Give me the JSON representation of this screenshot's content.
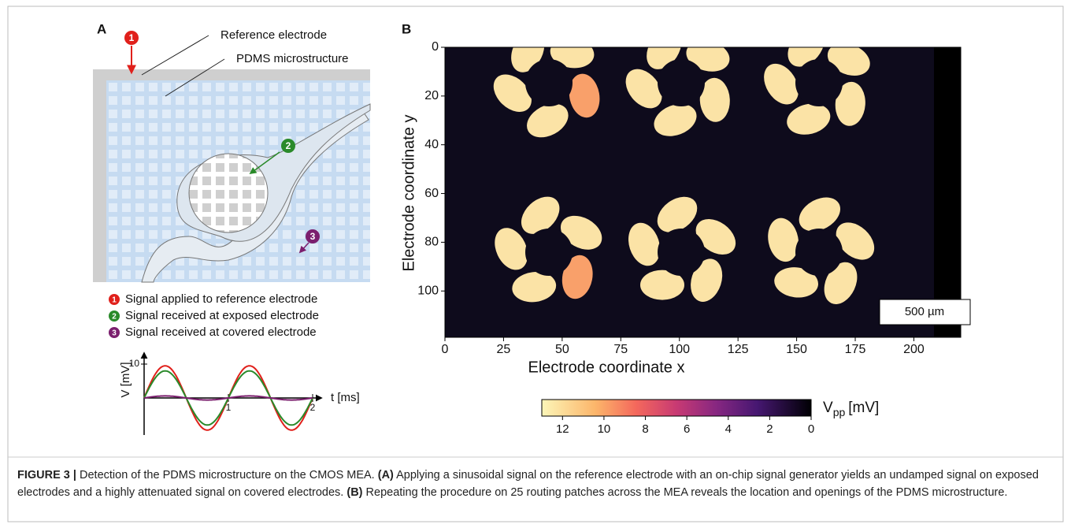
{
  "panel_a": {
    "letter": "A",
    "reference_label": "Reference electrode",
    "pdms_label": "PDMS microstructure",
    "markers": [
      "1",
      "2",
      "3"
    ],
    "legend": [
      {
        "num": "1",
        "text": "Signal applied to reference electrode"
      },
      {
        "num": "2",
        "text": "Signal received at exposed electrode"
      },
      {
        "num": "3",
        "text": "Signal received at covered electrode"
      }
    ],
    "mini_plot": {
      "ylabel": "V [mV]",
      "xlabel": "t [ms]",
      "yticks": [
        10
      ],
      "xticks": [
        1,
        2
      ]
    }
  },
  "panel_b": {
    "letter": "B",
    "xlabel": "Electrode coordinate x",
    "ylabel": "Electrode coordinate y",
    "xlim": [
      0,
      220
    ],
    "ylim": [
      0,
      119
    ],
    "xticks": [
      0,
      25,
      50,
      75,
      100,
      125,
      150,
      175,
      200
    ],
    "yticks": [
      0,
      20,
      40,
      60,
      80,
      100
    ],
    "scale_bar": "500 µm",
    "colorbar": {
      "clim": [
        13,
        0
      ],
      "ticks": [
        12,
        10,
        8,
        6,
        4,
        2,
        0
      ],
      "label": "V",
      "label_sub": "pp",
      "label_unit": "[mV]"
    }
  },
  "caption": {
    "figure": "FIGURE 3 |",
    "lead": "Detection of the PDMS microstructure on the CMOS MEA.",
    "a_tag": "(A)",
    "a_text": "Applying a sinusoidal signal on the reference electrode with an on-chip signal generator yields an undamped signal on exposed electrodes and a highly attenuated signal on covered electrodes.",
    "b_tag": "(B)",
    "b_text": "Repeating the procedure on 25 routing patches across the MEA reveals the location and openings of the PDMS microstructure."
  }
}
